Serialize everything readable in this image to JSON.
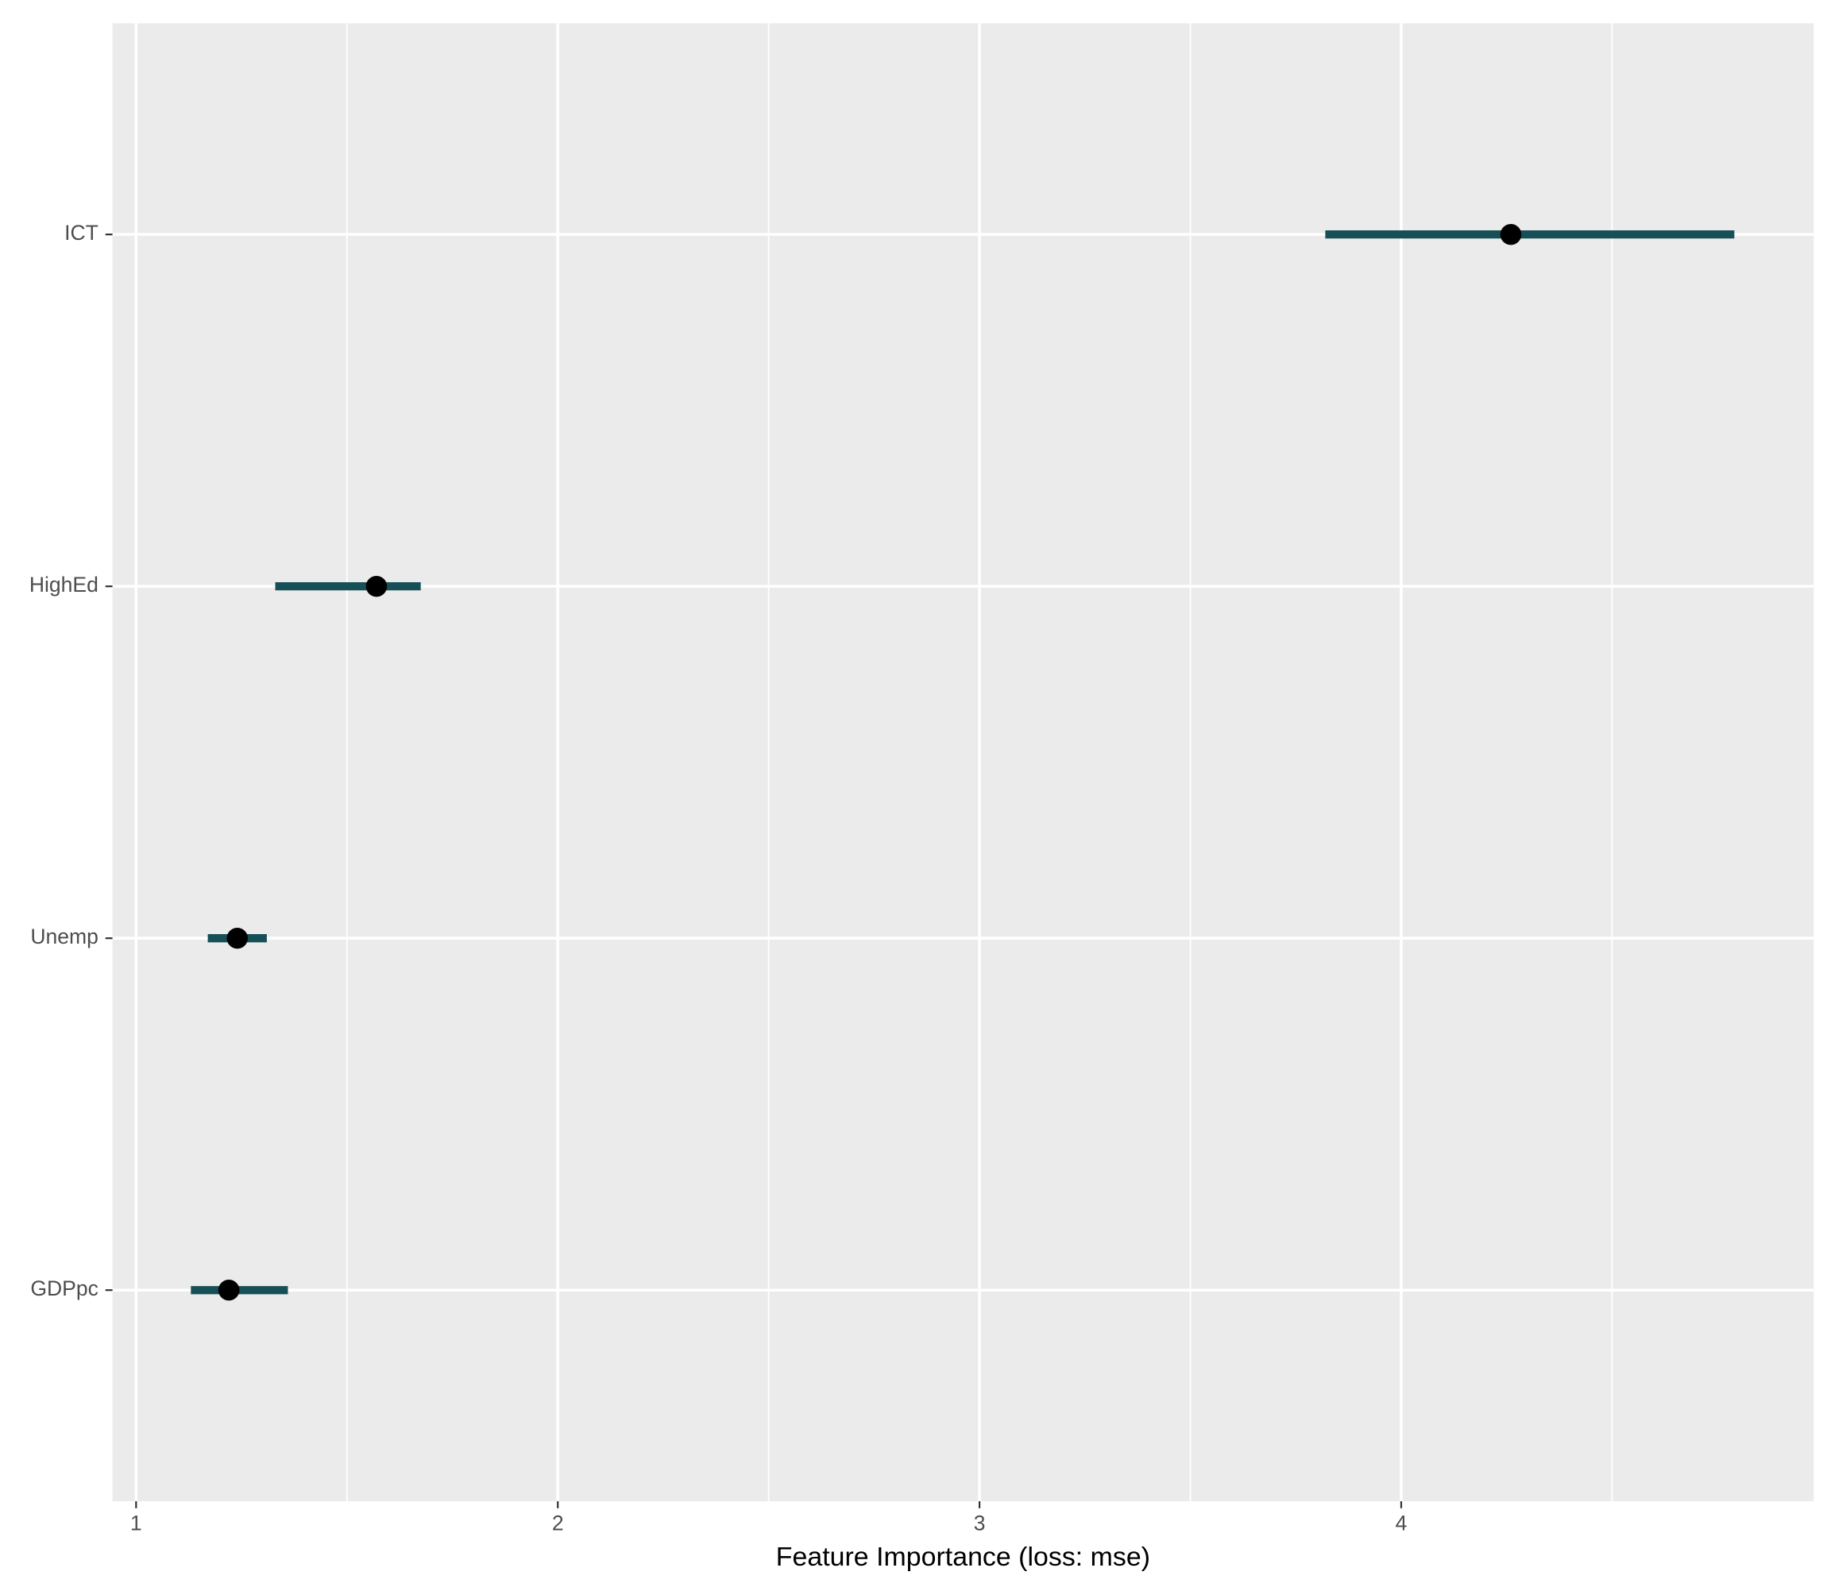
{
  "chart_data": {
    "type": "dotinterval",
    "xlabel": "Feature Importance (loss: mse)",
    "categories": [
      "ICT",
      "HighEd",
      "Unemp",
      "GDPpc"
    ],
    "values": [
      4.26,
      1.57,
      1.24,
      1.22
    ],
    "lower": [
      3.82,
      1.33,
      1.17,
      1.13
    ],
    "upper": [
      4.79,
      1.675,
      1.31,
      1.36
    ],
    "interval_color": "#164f55",
    "point_color": "#000000",
    "xlim": [
      0.944,
      4.978
    ],
    "xticks": [
      1,
      2,
      3,
      4
    ],
    "xminor": [
      1.5,
      2.5,
      3.5,
      4.5
    ],
    "grid": true
  }
}
